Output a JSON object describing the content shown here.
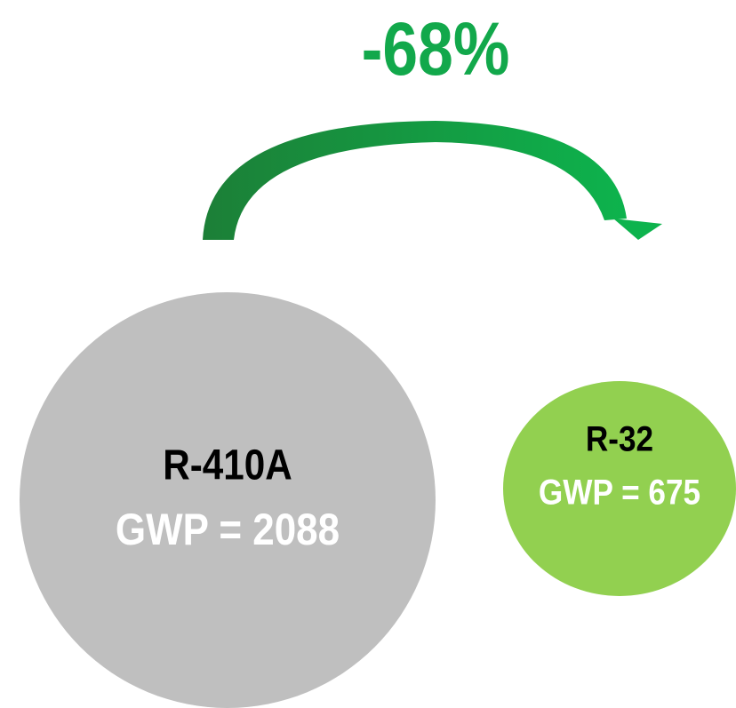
{
  "headline": "-68%",
  "nodes": [
    {
      "label": "R-410A",
      "value": "GWP = 2088"
    },
    {
      "label": "R-32",
      "value": "GWP = 675"
    }
  ]
}
